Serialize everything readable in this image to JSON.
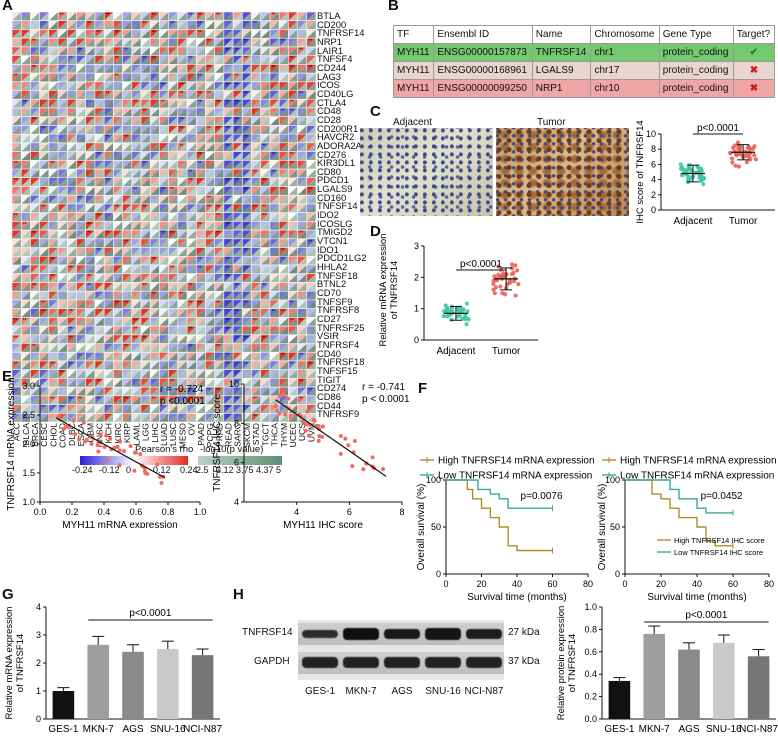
{
  "panels": {
    "A": {
      "label": "A",
      "genes": [
        "BTLA",
        "CD200",
        "TNFRSF14",
        "NRP1",
        "LAIR1",
        "TNFSF4",
        "CD244",
        "LAG3",
        "ICOS",
        "CD40LG",
        "CTLA4",
        "CD48",
        "CD28",
        "CD200R1",
        "HAVCR2",
        "ADORA2A",
        "CD276",
        "KIR3DL1",
        "CD80",
        "PDCD1",
        "LGALS9",
        "CD160",
        "TNFSF14",
        "IDO2",
        "ICOSLG",
        "TMIGD2",
        "VTCN1",
        "IDO1",
        "PDCD1LG2",
        "HHLA2",
        "TNFSF18",
        "BTNL2",
        "CD70",
        "TNFSF9",
        "TNFRSF8",
        "CD27",
        "TNFRSF25",
        "VSIR",
        "TNFRSF4",
        "CD40",
        "TNFRSF18",
        "TNFSF15",
        "TIGIT",
        "CD274",
        "CD86",
        "CD44",
        "TNFRSF9"
      ],
      "cancers": [
        "ACC",
        "BLCA",
        "BRCA",
        "CESC",
        "CHOL",
        "COAD",
        "DLBC",
        "ESCA",
        "GBM",
        "HNSC",
        "KICH",
        "KIRC",
        "KIRP",
        "LAML",
        "LGG",
        "LIHC",
        "LUAD",
        "LUSC",
        "MESO",
        "OV",
        "PAAD",
        "PCPG",
        "PRAD",
        "READ",
        "SARC",
        "SKCM",
        "STAD",
        "TGCT",
        "THCA",
        "THYM",
        "UCEC",
        "UCS",
        "UVM"
      ],
      "legend_rho_title": "Pearson's rho",
      "legend_rho_ticks": [
        "-0.24",
        "-0.12",
        "0",
        "0.12",
        "0.24"
      ],
      "legend_p_title": "-log10(p value)",
      "legend_p_ticks": [
        "2.5",
        "3.12",
        "3.75",
        "4.37",
        "5"
      ],
      "colors": {
        "neg": "#3a2fd6",
        "pos": "#e8332a",
        "lower": "#8fb3a0",
        "grid": "#ffffff"
      }
    },
    "B": {
      "label": "B",
      "headers": [
        "TF",
        "Ensembl ID",
        "Name",
        "Chromosome",
        "Gene Type",
        "Target?"
      ],
      "rows": [
        {
          "tf": "MYH11",
          "ensembl": "ENSG00000157873",
          "name": "TNFRSF14",
          "chrom": "chr1",
          "type": "protein_coding",
          "target": "✔",
          "bg": "#74c96e",
          "mark_color": "#1e8a1e"
        },
        {
          "tf": "MYH11",
          "ensembl": "ENSG00000168961",
          "name": "LGALS9",
          "chrom": "chr17",
          "type": "protein_coding",
          "target": "✖",
          "bg": "#e9d4cf",
          "mark_color": "#cc1f1f"
        },
        {
          "tf": "MYH11",
          "ensembl": "ENSG00000099250",
          "name": "NRP1",
          "chrom": "chr10",
          "type": "protein_coding",
          "target": "✖",
          "bg": "#f0a6a6",
          "mark_color": "#cc1f1f"
        }
      ]
    },
    "C": {
      "label": "C",
      "img_labels": [
        "Adjacent",
        "Tumor"
      ],
      "pvalue": "p<0.0001",
      "ylabel": "IHC score of TNFRSF14",
      "chart_data": {
        "type": "scatter",
        "categories": [
          "Adjacent",
          "Tumor"
        ],
        "means": [
          4.8,
          7.6
        ],
        "sd": [
          1.1,
          1.0
        ],
        "ylim": [
          0,
          10
        ],
        "yticks": [
          "0",
          "2",
          "4",
          "6",
          "8",
          "10"
        ],
        "colors": [
          "#3ec9a7",
          "#e8605a"
        ]
      }
    },
    "D": {
      "label": "D",
      "pvalue": "p<0.0001",
      "ylabel": "Relative mRNA expression of TNFRSF14",
      "chart_data": {
        "type": "scatter",
        "categories": [
          "Adjacent",
          "Tumor"
        ],
        "means": [
          0.85,
          1.95
        ],
        "sd": [
          0.22,
          0.35
        ],
        "ylim": [
          0,
          3
        ],
        "yticks": [
          "0",
          "1",
          "2",
          "3"
        ],
        "colors": [
          "#3ec9a7",
          "#e8605a"
        ]
      }
    },
    "E": {
      "label": "E",
      "left": {
        "ylabel": "TNFRSF14 mRNA expression",
        "xlabel": "MYH11 mRNA expression",
        "r": "r = -0.724",
        "p": "p <0.0001",
        "chart_data": {
          "type": "scatter",
          "xlim": [
            0,
            1
          ],
          "ylim": [
            1,
            3
          ],
          "xticks": [
            "0.0",
            "0.2",
            "0.4",
            "0.6",
            "0.8",
            "1.0"
          ],
          "yticks": [
            "1.0",
            "1.5",
            "2.0",
            "2.5",
            "3.0"
          ],
          "fit": [
            [
              0.1,
              2.45
            ],
            [
              0.78,
              1.42
            ]
          ]
        }
      },
      "right": {
        "ylabel": "TNFRSF14 IHC score",
        "xlabel": "MYH11 IHC score",
        "r": "r = -0.741",
        "p": "p < 0.0001",
        "chart_data": {
          "type": "scatter",
          "xlim": [
            2,
            8
          ],
          "ylim": [
            4,
            10
          ],
          "xticks": [
            "4",
            "6",
            "8"
          ],
          "yticks": [
            "4",
            "6",
            "8",
            "10"
          ],
          "fit": [
            [
              3.2,
              9.2
            ],
            [
              7.4,
              5.3
            ]
          ]
        }
      }
    },
    "F": {
      "label": "F",
      "left": {
        "legend": [
          "High TNFRSF14 mRNA expression",
          "Low TNFRSF14 mRNA expression"
        ],
        "pvalue": "p=0.0076",
        "ylabel": "Overall survival (%)",
        "xlabel": "Survival time (months)",
        "chart_data": {
          "type": "line",
          "xlim": [
            0,
            80
          ],
          "ylim": [
            0,
            100
          ],
          "xticks": [
            "0",
            "20",
            "40",
            "60",
            "80"
          ],
          "yticks": [
            "0",
            "50",
            "100"
          ],
          "series": [
            {
              "name": "High TNFRSF14 mRNA expression",
              "color": "#b08a2e",
              "points": [
                [
                  0,
                  100
                ],
                [
                  10,
                  100
                ],
                [
                  12,
                  90
                ],
                [
                  15,
                  80
                ],
                [
                  20,
                  70
                ],
                [
                  25,
                  60
                ],
                [
                  30,
                  50
                ],
                [
                  35,
                  30
                ],
                [
                  40,
                  25
                ],
                [
                  60,
                  25
                ]
              ]
            },
            {
              "name": "Low TNFRSF14 mRNA expression",
              "color": "#3aa89a",
              "points": [
                [
                  0,
                  100
                ],
                [
                  15,
                  100
                ],
                [
                  18,
                  90
                ],
                [
                  25,
                  85
                ],
                [
                  30,
                  80
                ],
                [
                  35,
                  70
                ],
                [
                  60,
                  70
                ]
              ]
            }
          ]
        }
      },
      "right": {
        "legend": [
          "High TNFRSF14 mRNA expression",
          "Low TNFRSF14 mRNA expression"
        ],
        "inner_legend": [
          "High TNFRSF14 IHC score",
          "Low TNFRSF14 IHC score"
        ],
        "pvalue": "p=0.0452",
        "ylabel": "Overall survival (%)",
        "xlabel": "Survival time (months)",
        "chart_data": {
          "type": "line",
          "xlim": [
            0,
            80
          ],
          "ylim": [
            0,
            100
          ],
          "xticks": [
            "0",
            "20",
            "40",
            "60",
            "80"
          ],
          "yticks": [
            "0",
            "50",
            "100"
          ],
          "series": [
            {
              "name": "High TNFRSF14 IHC score",
              "color": "#b08a2e",
              "points": [
                [
                  0,
                  100
                ],
                [
                  10,
                  100
                ],
                [
                  15,
                  85
                ],
                [
                  20,
                  80
                ],
                [
                  25,
                  70
                ],
                [
                  30,
                  60
                ],
                [
                  40,
                  50
                ],
                [
                  45,
                  35
                ],
                [
                  50,
                  30
                ],
                [
                  60,
                  30
                ]
              ]
            },
            {
              "name": "Low TNFRSF14 IHC score",
              "color": "#3aa89a",
              "points": [
                [
                  0,
                  100
                ],
                [
                  20,
                  100
                ],
                [
                  25,
                  90
                ],
                [
                  30,
                  80
                ],
                [
                  40,
                  70
                ],
                [
                  45,
                  65
                ],
                [
                  60,
                  65
                ]
              ]
            }
          ]
        }
      }
    },
    "G": {
      "label": "G",
      "pvalue": "p<0.0001",
      "ylabel": "Relative mRNA expression of TNFRSF14",
      "chart_data": {
        "type": "bar",
        "categories": [
          "GES-1",
          "MKN-7",
          "AGS",
          "SNU-16",
          "NCI-N87"
        ],
        "values": [
          1.0,
          2.65,
          2.4,
          2.5,
          2.28
        ],
        "errors": [
          0.12,
          0.3,
          0.25,
          0.28,
          0.22
        ],
        "ylim": [
          0,
          4
        ],
        "yticks": [
          "0",
          "1",
          "2",
          "3",
          "4"
        ],
        "colors": [
          "#111111",
          "#9e9e9e",
          "#8a8a8a",
          "#c9c9c9",
          "#777777"
        ]
      }
    },
    "H": {
      "label": "H",
      "blot_rows": [
        "TNFRSF14",
        "GAPDH"
      ],
      "blot_kda": [
        "27 kDa",
        "37 kDa"
      ],
      "lanes": [
        "GES-1",
        "MKN-7",
        "AGS",
        "SNU-16",
        "NCI-N87"
      ],
      "pvalue": "p<0.0001",
      "ylabel": "Relative protein expression of TNFRSF14",
      "chart_data": {
        "type": "bar",
        "categories": [
          "GES-1",
          "MKN-7",
          "AGS",
          "SNU-16",
          "NCI-N87"
        ],
        "values": [
          0.34,
          0.76,
          0.62,
          0.68,
          0.56
        ],
        "errors": [
          0.03,
          0.07,
          0.06,
          0.07,
          0.06
        ],
        "ylim": [
          0,
          1.0
        ],
        "yticks": [
          "0.0",
          "0.2",
          "0.4",
          "0.6",
          "0.8",
          "1.0"
        ],
        "colors": [
          "#111111",
          "#9e9e9e",
          "#8a8a8a",
          "#c9c9c9",
          "#777777"
        ]
      }
    }
  }
}
